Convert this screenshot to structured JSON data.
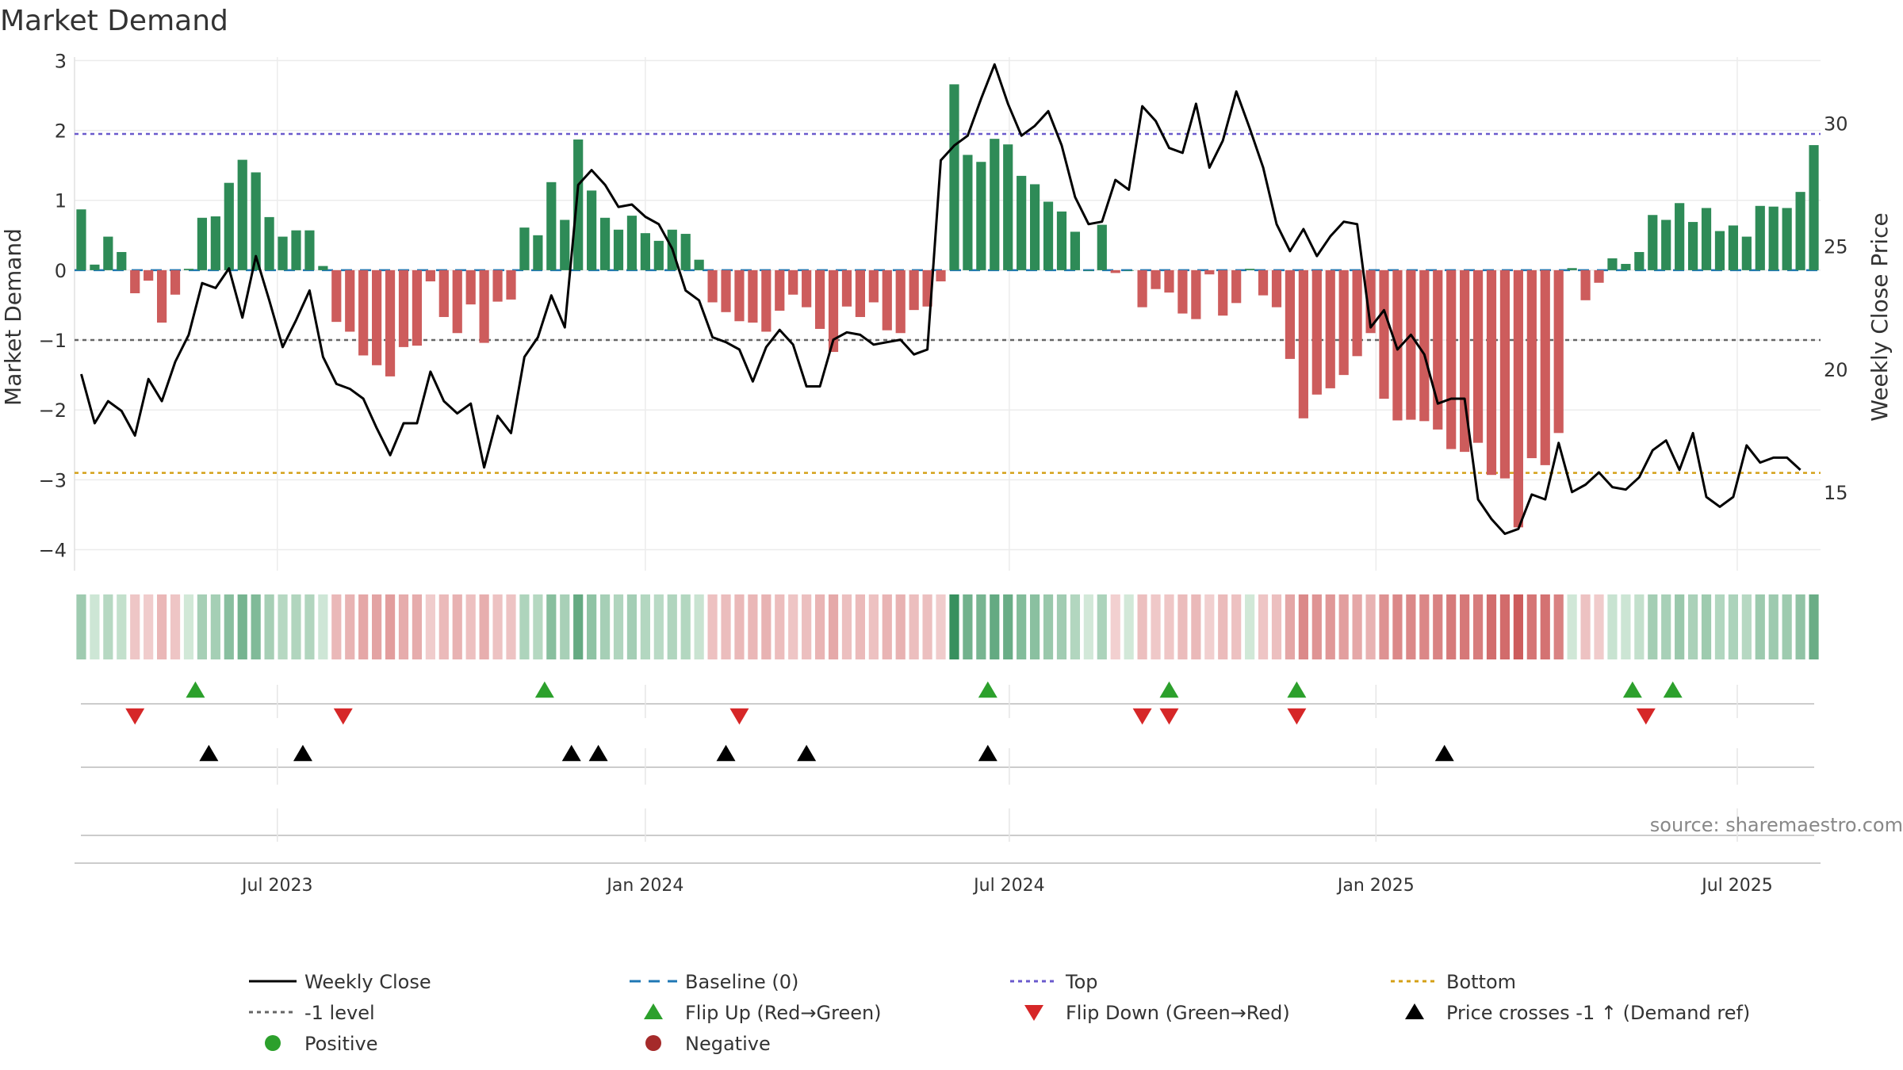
{
  "chart_data": {
    "type": "bar",
    "title": "Market Demand",
    "ylabel": "Market Demand",
    "y2label": "Weekly Close Price",
    "ylim": [
      -4.3,
      3.05
    ],
    "y2lim": [
      11.8,
      32.7
    ],
    "yticks": [
      3,
      2,
      1,
      0,
      -1,
      -2,
      -3,
      -4
    ],
    "yticklabels": [
      "3",
      "2",
      "1",
      "0",
      "−1",
      "−2",
      "−3",
      "−4"
    ],
    "y2ticks": [
      30,
      25,
      20,
      15
    ],
    "y2ticklabels": [
      "30",
      "25",
      "20",
      "15"
    ],
    "x_start_week": 0,
    "x_end_week": 135,
    "xticks": [
      {
        "label": "Jul 2023",
        "week": 14.6
      },
      {
        "label": "Jan 2024",
        "week": 42.0
      },
      {
        "label": "Jul 2024",
        "week": 69.1
      },
      {
        "label": "Jan 2025",
        "week": 96.4
      },
      {
        "label": "Jul 2025",
        "week": 123.3
      }
    ],
    "top_level": 1.95,
    "bottom_level": -2.9,
    "minus1_level": -1.0,
    "demand": [
      0.87,
      0.08,
      0.48,
      0.26,
      -0.33,
      -0.15,
      -0.75,
      -0.35,
      0.02,
      0.75,
      0.77,
      1.25,
      1.58,
      1.4,
      0.76,
      0.48,
      0.57,
      0.57,
      0.06,
      -0.74,
      -0.88,
      -1.22,
      -1.36,
      -1.52,
      -1.1,
      -1.08,
      -0.16,
      -0.67,
      -0.9,
      -0.49,
      -1.04,
      -0.45,
      -0.42,
      0.61,
      0.5,
      1.26,
      0.72,
      1.87,
      1.14,
      0.75,
      0.58,
      0.78,
      0.53,
      0.42,
      0.58,
      0.52,
      0.15,
      -0.46,
      -0.6,
      -0.73,
      -0.75,
      -0.88,
      -0.58,
      -0.35,
      -0.53,
      -0.84,
      -1.17,
      -0.52,
      -0.67,
      -0.46,
      -0.86,
      -0.9,
      -0.57,
      -0.52,
      -0.16,
      2.66,
      1.65,
      1.55,
      1.88,
      1.8,
      1.35,
      1.23,
      0.98,
      0.84,
      0.55,
      0.0,
      0.65,
      -0.04,
      0.0,
      -0.53,
      -0.27,
      -0.32,
      -0.62,
      -0.7,
      -0.06,
      -0.65,
      -0.47,
      0.02,
      -0.36,
      -0.53,
      -1.27,
      -2.12,
      -1.78,
      -1.69,
      -1.5,
      -1.23,
      -0.9,
      -1.84,
      -2.15,
      -2.14,
      -2.16,
      -2.28,
      -2.56,
      -2.6,
      -2.47,
      -2.93,
      -2.98,
      -3.68,
      -2.69,
      -2.79,
      -2.33,
      0.03,
      -0.43,
      -0.18,
      0.17,
      0.09,
      0.26,
      0.79,
      0.72,
      0.96,
      0.69,
      0.89,
      0.56,
      0.64,
      0.48,
      0.92,
      0.91,
      0.89,
      1.12,
      1.79
    ],
    "close": [
      19.8,
      17.8,
      18.7,
      18.3,
      17.3,
      19.6,
      18.7,
      20.3,
      21.4,
      23.5,
      23.3,
      24.1,
      22.1,
      24.6,
      22.8,
      20.9,
      22.0,
      23.2,
      20.5,
      19.4,
      19.2,
      18.8,
      17.6,
      16.5,
      17.8,
      17.8,
      19.9,
      18.7,
      18.2,
      18.6,
      16.0,
      18.1,
      17.4,
      20.5,
      21.3,
      23.0,
      21.7,
      27.5,
      28.1,
      27.5,
      26.6,
      26.7,
      26.2,
      25.9,
      24.9,
      23.2,
      22.8,
      21.3,
      21.1,
      20.8,
      19.5,
      20.9,
      21.6,
      21.0,
      19.3,
      19.3,
      21.2,
      21.5,
      21.4,
      21.0,
      21.1,
      21.2,
      20.6,
      20.8,
      28.5,
      29.1,
      29.5,
      31.0,
      32.4,
      30.8,
      29.5,
      29.9,
      30.5,
      29.1,
      27.0,
      25.9,
      26.0,
      27.7,
      27.3,
      30.7,
      30.1,
      29.0,
      28.8,
      30.8,
      28.2,
      29.3,
      31.3,
      29.8,
      28.2,
      25.9,
      24.8,
      25.7,
      24.6,
      25.4,
      26.0,
      25.9,
      21.7,
      22.4,
      20.8,
      21.4,
      20.6,
      18.6,
      18.8,
      18.8,
      14.7,
      13.9,
      13.3,
      13.5,
      14.9,
      14.7,
      17.0,
      15.0,
      15.3,
      15.8,
      15.2,
      15.1,
      15.6,
      16.7,
      17.1,
      15.9,
      17.4,
      14.8,
      14.4,
      14.8,
      16.9,
      16.2,
      16.4,
      16.4,
      15.9
    ],
    "flip_up_weeks": [
      8.5,
      34.5,
      67.5,
      81.0,
      90.5,
      115.5,
      118.5
    ],
    "flip_down_weeks": [
      4.0,
      19.5,
      49.0,
      79.0,
      81.0,
      90.5,
      116.5
    ],
    "cross_weeks": [
      9.5,
      16.5,
      36.5,
      38.5,
      48.0,
      54.0,
      67.5,
      101.5
    ],
    "colors": {
      "positive_bar": "#2e8b57",
      "negative_bar": "#cd5c5c",
      "close_line": "#000000",
      "baseline": "#1f77b4",
      "top": "#6a5acd",
      "bottom": "#d4a017",
      "minus1": "#666666",
      "flip_up": "#2ca02c",
      "flip_down": "#d62728",
      "cross": "#000000",
      "positive_dot": "#2ca02c",
      "negative_dot": "#a52a2a"
    },
    "source": "source: sharemaestro.com",
    "legend": [
      {
        "label": "Weekly Close",
        "kind": "line"
      },
      {
        "label": "Baseline (0)",
        "kind": "dash"
      },
      {
        "label": "Top",
        "kind": "dot-top"
      },
      {
        "label": "Bottom",
        "kind": "dot-bottom"
      },
      {
        "label": "-1 level",
        "kind": "dot-minus1"
      },
      {
        "label": "Flip Up (Red→Green)",
        "kind": "tri-up"
      },
      {
        "label": "Flip Down (Green→Red)",
        "kind": "tri-down"
      },
      {
        "label": "Price crosses -1 ↑ (Demand ref)",
        "kind": "tri-black"
      },
      {
        "label": "Positive",
        "kind": "dot-pos"
      },
      {
        "label": "Negative",
        "kind": "dot-neg"
      }
    ]
  }
}
